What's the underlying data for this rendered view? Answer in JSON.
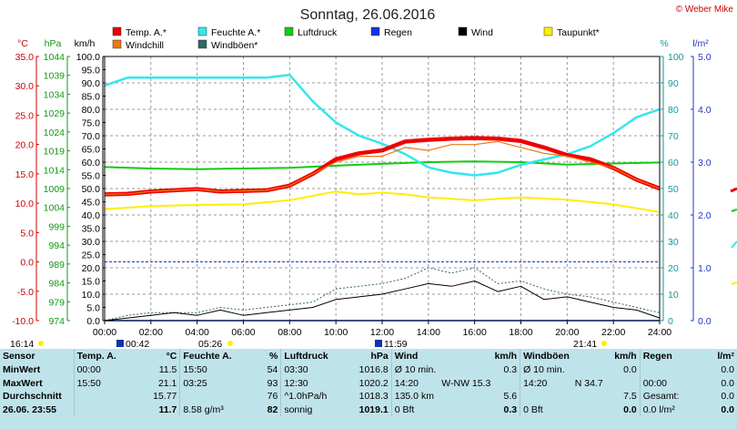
{
  "page": {
    "title": "Sonntag, 26.06.2016",
    "credit": "© Weber Mike"
  },
  "legend": [
    {
      "label": "Temp. A.*",
      "color": "#ee0000"
    },
    {
      "label": "Feuchte A.*",
      "color": "#33e6ee"
    },
    {
      "label": "Luftdruck",
      "color": "#11cc11"
    },
    {
      "label": "Regen",
      "color": "#1133ee"
    },
    {
      "label": "Wind",
      "color": "#000000"
    },
    {
      "label": "Taupunkt*",
      "color": "#ffee00"
    },
    {
      "label": "Windchill",
      "color": "#ee7711"
    },
    {
      "label": "Windböen*",
      "color": "#336666"
    }
  ],
  "axes": {
    "units": {
      "temp": "°C",
      "press": "hPa",
      "wind": "km/h",
      "hum": "%",
      "rain": "l/m²"
    },
    "temp_ticks": [
      "35.0",
      "30.0",
      "25.0",
      "20.0",
      "15.0",
      "10.0",
      "5.0",
      "0.0",
      "-5.0",
      "-10.0"
    ],
    "press_ticks": [
      "1044",
      "1039",
      "1034",
      "1029",
      "1024",
      "1019",
      "1014",
      "1009",
      "1004",
      "999",
      "994",
      "989",
      "984",
      "979",
      "974"
    ],
    "wind_ticks": [
      "100.0",
      "95.0",
      "90.0",
      "85.0",
      "80.0",
      "75.0",
      "70.0",
      "65.0",
      "60.0",
      "55.0",
      "50.0",
      "45.0",
      "40.0",
      "35.0",
      "30.0",
      "25.0",
      "20.0",
      "15.0",
      "10.0",
      "5.0",
      "0.0"
    ],
    "hum_ticks": [
      "100",
      "90",
      "80",
      "70",
      "60",
      "50",
      "40",
      "30",
      "20",
      "10",
      "0"
    ],
    "rain_ticks": [
      "5.0",
      "4.0",
      "3.0",
      "2.0",
      "1.0",
      "0.0"
    ],
    "x_ticks": [
      "00:00",
      "02:00",
      "04:00",
      "06:00",
      "08:00",
      "10:00",
      "12:00",
      "14:00",
      "16:00",
      "18:00",
      "20:00",
      "22:00",
      "24:00"
    ]
  },
  "sun": {
    "sunrise_left": "16:14",
    "sunrise": "00:42",
    "civil_dawn": "05:26",
    "noon": "11:59",
    "sunset": "21:41"
  },
  "chart_data": {
    "type": "line",
    "x_unit": "hours",
    "x_range": [
      0,
      24
    ],
    "series": [
      {
        "name": "Temp. A.*",
        "axis": "°C",
        "color": "#ee0000",
        "x": [
          0,
          1,
          2,
          3,
          4,
          5,
          6,
          7,
          8,
          9,
          10,
          11,
          12,
          13,
          14,
          15,
          16,
          17,
          18,
          19,
          20,
          21,
          22,
          23,
          24
        ],
        "y": [
          11.5,
          11.6,
          12.0,
          12.2,
          12.4,
          12.0,
          12.1,
          12.2,
          13.0,
          15.0,
          17.5,
          18.5,
          19.0,
          20.5,
          20.8,
          21.0,
          21.1,
          21.0,
          20.6,
          19.5,
          18.2,
          17.5,
          16.0,
          14.0,
          12.5
        ]
      },
      {
        "name": "Windchill",
        "axis": "°C",
        "color": "#ee7711",
        "x": [
          0,
          1,
          2,
          3,
          4,
          5,
          6,
          7,
          8,
          9,
          10,
          11,
          12,
          13,
          14,
          15,
          16,
          17,
          18,
          19,
          20,
          21,
          22,
          23,
          24
        ],
        "y": [
          11.5,
          11.6,
          12.0,
          12.2,
          12.4,
          12.0,
          12.1,
          12.2,
          13.0,
          15.0,
          17.0,
          18.0,
          18.0,
          19.5,
          19.0,
          20.0,
          20.0,
          20.5,
          19.5,
          18.5,
          18.0,
          17.0,
          16.0,
          14.0,
          12.5
        ]
      },
      {
        "name": "Feuchte A.*",
        "axis": "%",
        "color": "#33e6ee",
        "x": [
          0,
          1,
          2,
          3,
          4,
          5,
          6,
          7,
          8,
          9,
          10,
          11,
          12,
          13,
          14,
          15,
          16,
          17,
          18,
          19,
          20,
          21,
          22,
          23,
          24
        ],
        "y": [
          89,
          92,
          92,
          92,
          92,
          92,
          92,
          92,
          93,
          83,
          75,
          70,
          67,
          63,
          58,
          56,
          55,
          56,
          59,
          61,
          63,
          66,
          71,
          77,
          80
        ]
      },
      {
        "name": "Luftdruck",
        "axis": "hPa",
        "color": "#11cc11",
        "x": [
          0,
          2,
          4,
          6,
          8,
          10,
          12,
          14,
          16,
          18,
          20,
          22,
          24
        ],
        "y": [
          1017.6,
          1017.2,
          1017.0,
          1017.2,
          1017.4,
          1018.0,
          1018.5,
          1019.0,
          1019.2,
          1019.0,
          1018.3,
          1018.6,
          1018.9
        ]
      },
      {
        "name": "Taupunkt*",
        "axis": "°C",
        "color": "#ffee00",
        "x": [
          0,
          2,
          4,
          6,
          8,
          10,
          11,
          12,
          13,
          14,
          16,
          18,
          20,
          22,
          24
        ],
        "y": [
          9.0,
          9.5,
          9.7,
          9.8,
          10.5,
          12.0,
          11.5,
          11.8,
          11.5,
          11.0,
          10.5,
          11.0,
          10.6,
          9.8,
          8.5
        ]
      },
      {
        "name": "Wind",
        "axis": "km/h",
        "color": "#000000",
        "x": [
          0,
          1,
          2,
          3,
          4,
          5,
          6,
          7,
          8,
          9,
          10,
          11,
          12,
          13,
          14,
          15,
          16,
          17,
          18,
          19,
          20,
          21,
          22,
          23,
          24
        ],
        "y": [
          0,
          1,
          2,
          3,
          2,
          4,
          2,
          3,
          4,
          5,
          8,
          9,
          10,
          12,
          14,
          13,
          15,
          11,
          13,
          8,
          9,
          7,
          5,
          4,
          1
        ]
      },
      {
        "name": "Windböen*",
        "axis": "km/h",
        "color": "#336666",
        "x": [
          0,
          1,
          2,
          3,
          4,
          5,
          6,
          7,
          8,
          9,
          10,
          11,
          12,
          13,
          14,
          15,
          16,
          17,
          18,
          19,
          20,
          21,
          22,
          23,
          24
        ],
        "y": [
          0,
          2,
          3,
          3,
          3,
          5,
          4,
          5,
          6,
          7,
          12,
          13,
          14,
          16,
          20,
          18,
          20,
          14,
          15,
          12,
          10,
          9,
          7,
          5,
          3
        ]
      },
      {
        "name": "Regen",
        "axis": "l/m²",
        "color": "#1133ee",
        "x": [
          0,
          24
        ],
        "y": [
          0,
          0
        ]
      }
    ]
  },
  "stats": {
    "headers": [
      "Sensor",
      "Temp. A.",
      "°C",
      "Feuchte A.",
      "%",
      "Luftdruck",
      "hPa",
      "Wind",
      "km/h",
      "Windböen",
      "km/h",
      "Regen",
      "l/m²"
    ],
    "rows": [
      [
        "MinWert",
        "00:00",
        "11.5",
        "15:50",
        "54",
        "03:30",
        "1016.8",
        "Ø 10 min.",
        "",
        "0.3",
        "Ø 10 min.",
        "",
        "0.0",
        "",
        "0.0"
      ],
      [
        "MaxWert",
        "15:50",
        "21.1",
        "03:25",
        "93",
        "12:30",
        "1020.2",
        "14:20",
        "W-NW 15.3",
        "",
        "14:20",
        "N 34.7",
        "",
        "00:00",
        "0.0"
      ],
      [
        "Durchschnitt",
        "",
        "15.77",
        "",
        "76",
        "^1.0hPa/h",
        "1018.3",
        "135.0 km",
        "",
        "5.6",
        "",
        "",
        "7.5",
        "Gesamt:",
        "0.0"
      ],
      [
        "26.06. 23:55",
        "",
        "11.7",
        "8.58 g/m³",
        "82",
        "sonnig",
        "1019.1",
        "0 Bft",
        "",
        "0.3",
        "0 Bft",
        "",
        "0.0",
        "0.0 l/m²",
        "0.0"
      ]
    ]
  }
}
